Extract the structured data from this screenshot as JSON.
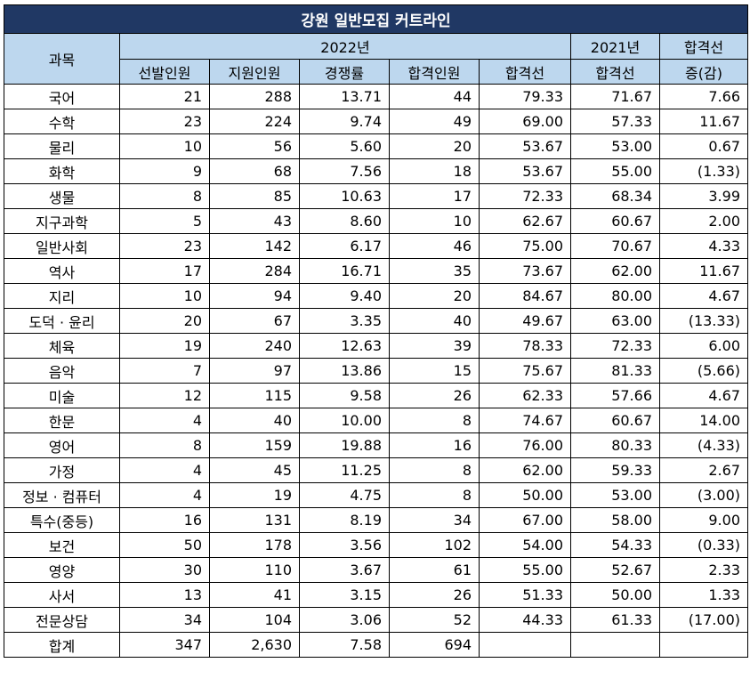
{
  "title": "강원 일반모집 커트라인",
  "headers": {
    "subject": "과목",
    "year2022": "2022년",
    "year2021": "2021년",
    "change_line1": "합격선",
    "change_line2": "증(감)",
    "sub": [
      "선발인원",
      "지원인원",
      "경쟁률",
      "합격인원",
      "합격선",
      "합격선"
    ]
  },
  "rows": [
    {
      "subject": "국어",
      "select": "21",
      "apply": "288",
      "ratio": "13.71",
      "pass": "44",
      "cut2022": "79.33",
      "cut2021": "71.67",
      "change": "7.66",
      "negative": false
    },
    {
      "subject": "수학",
      "select": "23",
      "apply": "224",
      "ratio": "9.74",
      "pass": "49",
      "cut2022": "69.00",
      "cut2021": "57.33",
      "change": "11.67",
      "negative": false
    },
    {
      "subject": "물리",
      "select": "10",
      "apply": "56",
      "ratio": "5.60",
      "pass": "20",
      "cut2022": "53.67",
      "cut2021": "53.00",
      "change": "0.67",
      "negative": false
    },
    {
      "subject": "화학",
      "select": "9",
      "apply": "68",
      "ratio": "7.56",
      "pass": "18",
      "cut2022": "53.67",
      "cut2021": "55.00",
      "change": "(1.33)",
      "negative": true
    },
    {
      "subject": "생물",
      "select": "8",
      "apply": "85",
      "ratio": "10.63",
      "pass": "17",
      "cut2022": "72.33",
      "cut2021": "68.34",
      "change": "3.99",
      "negative": false
    },
    {
      "subject": "지구과학",
      "select": "5",
      "apply": "43",
      "ratio": "8.60",
      "pass": "10",
      "cut2022": "62.67",
      "cut2021": "60.67",
      "change": "2.00",
      "negative": false
    },
    {
      "subject": "일반사회",
      "select": "23",
      "apply": "142",
      "ratio": "6.17",
      "pass": "46",
      "cut2022": "75.00",
      "cut2021": "70.67",
      "change": "4.33",
      "negative": false
    },
    {
      "subject": "역사",
      "select": "17",
      "apply": "284",
      "ratio": "16.71",
      "pass": "35",
      "cut2022": "73.67",
      "cut2021": "62.00",
      "change": "11.67",
      "negative": false
    },
    {
      "subject": "지리",
      "select": "10",
      "apply": "94",
      "ratio": "9.40",
      "pass": "20",
      "cut2022": "84.67",
      "cut2021": "80.00",
      "change": "4.67",
      "negative": false
    },
    {
      "subject": "도덕 · 윤리",
      "select": "20",
      "apply": "67",
      "ratio": "3.35",
      "pass": "40",
      "cut2022": "49.67",
      "cut2021": "63.00",
      "change": "(13.33)",
      "negative": true
    },
    {
      "subject": "체육",
      "select": "19",
      "apply": "240",
      "ratio": "12.63",
      "pass": "39",
      "cut2022": "78.33",
      "cut2021": "72.33",
      "change": "6.00",
      "negative": false
    },
    {
      "subject": "음악",
      "select": "7",
      "apply": "97",
      "ratio": "13.86",
      "pass": "15",
      "cut2022": "75.67",
      "cut2021": "81.33",
      "change": "(5.66)",
      "negative": true
    },
    {
      "subject": "미술",
      "select": "12",
      "apply": "115",
      "ratio": "9.58",
      "pass": "26",
      "cut2022": "62.33",
      "cut2021": "57.66",
      "change": "4.67",
      "negative": false
    },
    {
      "subject": "한문",
      "select": "4",
      "apply": "40",
      "ratio": "10.00",
      "pass": "8",
      "cut2022": "74.67",
      "cut2021": "60.67",
      "change": "14.00",
      "negative": false
    },
    {
      "subject": "영어",
      "select": "8",
      "apply": "159",
      "ratio": "19.88",
      "pass": "16",
      "cut2022": "76.00",
      "cut2021": "80.33",
      "change": "(4.33)",
      "negative": true
    },
    {
      "subject": "가정",
      "select": "4",
      "apply": "45",
      "ratio": "11.25",
      "pass": "8",
      "cut2022": "62.00",
      "cut2021": "59.33",
      "change": "2.67",
      "negative": false
    },
    {
      "subject": "정보 · 컴퓨터",
      "select": "4",
      "apply": "19",
      "ratio": "4.75",
      "pass": "8",
      "cut2022": "50.00",
      "cut2021": "53.00",
      "change": "(3.00)",
      "negative": true
    },
    {
      "subject": "특수(중등)",
      "select": "16",
      "apply": "131",
      "ratio": "8.19",
      "pass": "34",
      "cut2022": "67.00",
      "cut2021": "58.00",
      "change": "9.00",
      "negative": false
    },
    {
      "subject": "보건",
      "select": "50",
      "apply": "178",
      "ratio": "3.56",
      "pass": "102",
      "cut2022": "54.00",
      "cut2021": "54.33",
      "change": "(0.33)",
      "negative": true
    },
    {
      "subject": "영양",
      "select": "30",
      "apply": "110",
      "ratio": "3.67",
      "pass": "61",
      "cut2022": "55.00",
      "cut2021": "52.67",
      "change": "2.33",
      "negative": false
    },
    {
      "subject": "사서",
      "select": "13",
      "apply": "41",
      "ratio": "3.15",
      "pass": "26",
      "cut2022": "51.33",
      "cut2021": "50.00",
      "change": "1.33",
      "negative": false
    },
    {
      "subject": "전문상담",
      "select": "34",
      "apply": "104",
      "ratio": "3.06",
      "pass": "52",
      "cut2022": "44.33",
      "cut2021": "61.33",
      "change": "(17.00)",
      "negative": true
    },
    {
      "subject": "합계",
      "select": "347",
      "apply": "2,630",
      "ratio": "7.58",
      "pass": "694",
      "cut2022": "",
      "cut2021": "",
      "change": "",
      "negative": false
    }
  ],
  "colors": {
    "title_bg": "#203864",
    "header_bg": "#bdd7ee",
    "negative_text": "#ff0000"
  }
}
